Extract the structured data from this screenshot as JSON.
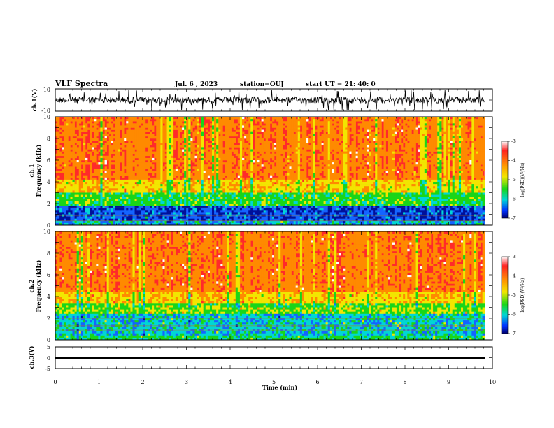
{
  "header": {
    "title": "VLF Spectra",
    "date": "Jul. 6 , 2023",
    "station": "station=OUJ",
    "start": "start UT = 21: 40: 0"
  },
  "chart_data": [
    {
      "type": "line",
      "ylabel": "ch.1(V)",
      "ylim": [
        -10,
        10
      ],
      "yticks": [
        "10",
        "-10"
      ],
      "xlim": [
        0,
        10
      ]
    },
    {
      "type": "heatmap",
      "ylabel_top": "ch.1",
      "ylabel_bottom": "Frequency (kHz)",
      "ylim": [
        0,
        10
      ],
      "yticks": [
        "0",
        "2",
        "4",
        "6",
        "8",
        "10"
      ],
      "xlim": [
        0,
        10
      ],
      "colorbar": {
        "label": "log(PSD)(V²/Hz)",
        "range": [
          -7,
          -3
        ],
        "ticks": [
          "-3",
          "-4",
          "-5",
          "-6",
          "-7"
        ]
      }
    },
    {
      "type": "heatmap",
      "ylabel_top": "ch.2",
      "ylabel_bottom": "Frequency (kHz)",
      "ylim": [
        0,
        10
      ],
      "yticks": [
        "0",
        "2",
        "4",
        "6",
        "8",
        "10"
      ],
      "xlim": [
        0,
        10
      ],
      "colorbar": {
        "label": "log(PSD)(V²/Hz)",
        "range": [
          -7,
          -3
        ],
        "ticks": [
          "-3",
          "-4",
          "-5",
          "-6",
          "-7"
        ]
      }
    },
    {
      "type": "line",
      "ylabel": "ch.3(V)",
      "ylim": [
        -5,
        5
      ],
      "yticks": [
        "5",
        "0",
        "-5"
      ],
      "xlim": [
        0,
        10
      ],
      "xlabel": "Time (min)",
      "xticks": [
        "0",
        "1",
        "2",
        "3",
        "4",
        "5",
        "6",
        "7",
        "8",
        "9",
        "10"
      ]
    }
  ]
}
